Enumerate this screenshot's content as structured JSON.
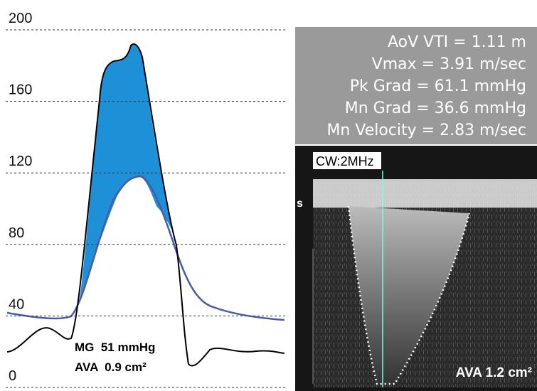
{
  "left_panel": {
    "yticks": [
      0,
      40,
      80,
      120,
      160,
      200
    ],
    "annotations": [
      "MG  51 mmHg",
      "AVA  0.9 cm²"
    ]
  },
  "right_panel": {
    "measurements": [
      "AoV VTI = 1.11 m",
      "Vmax = 3.91 m/sec",
      "Pk Grad = 61.1 mmHg",
      "Mn Grad = 36.6 mmHg",
      "Mn Velocity = 2.83 m/sec"
    ],
    "probe_label": "CW:2MHz",
    "marker": "s",
    "annotation": "AVA 1.2 cm²"
  }
}
